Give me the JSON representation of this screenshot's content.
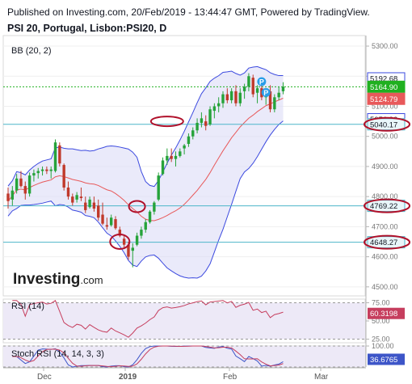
{
  "header": {
    "publisher": "Published on Investing.com, 20/Feb/2019 - 13:44:47 GMT, Powered by TradingView.",
    "symbol": "PSI 20, Portugal, Lisbon:PSI20, D"
  },
  "logo": {
    "brand": "Investing",
    "suffix": ".com"
  },
  "colors": {
    "up": "#26a33a",
    "down": "#c0392b",
    "band_fill": "#dcdcf7",
    "band_line": "#3b49df",
    "basis": "#e8595a",
    "price_line": "#20b020",
    "hline": "#4db6c9",
    "annotation": "#b0102a",
    "rsi_line": "#c63e5e",
    "stoch_k": "#3d55c8",
    "stoch_d": "#c63e5e"
  },
  "chart_data": [
    {
      "type": "candlestick",
      "title": "PSI 20, Portugal, Lisbon:PSI20, D",
      "indicator_label": "BB (20, 2)",
      "y_ticks": [
        5300,
        5200,
        5100,
        5000,
        4900,
        4800,
        4700,
        4600,
        4500
      ],
      "ylim": [
        4470,
        5335
      ],
      "x_ticks": [
        "Dec",
        "2019",
        "Feb",
        "Mar"
      ],
      "price_labels": [
        {
          "label": "5192.68",
          "value": 5192.68,
          "kind": "upper-band"
        },
        {
          "label": "5164.90",
          "value": 5164.9,
          "kind": "last-price"
        },
        {
          "label": "5124.79",
          "value": 5124.79,
          "kind": "basis"
        },
        {
          "label": "5056.90",
          "value": 5056.9,
          "kind": "lower-band"
        },
        {
          "label": "5040.17",
          "value": 5040.17,
          "kind": "horizontal-line"
        },
        {
          "label": "4769.22",
          "value": 4769.22,
          "kind": "horizontal-line"
        },
        {
          "label": "4648.27",
          "value": 4648.27,
          "kind": "horizontal-line"
        }
      ],
      "horizontal_lines": [
        5040.17,
        4769.22,
        4648.27
      ],
      "circled_levels": [
        5040.17,
        4769.22,
        4648.27
      ],
      "markers": [
        "P",
        "P"
      ],
      "candles": [
        {
          "o": 4810,
          "h": 4830,
          "l": 4760,
          "c": 4785
        },
        {
          "o": 4790,
          "h": 4835,
          "l": 4770,
          "c": 4820
        },
        {
          "o": 4820,
          "h": 4875,
          "l": 4810,
          "c": 4860
        },
        {
          "o": 4860,
          "h": 4885,
          "l": 4830,
          "c": 4835
        },
        {
          "o": 4835,
          "h": 4850,
          "l": 4790,
          "c": 4810
        },
        {
          "o": 4810,
          "h": 4880,
          "l": 4800,
          "c": 4870
        },
        {
          "o": 4870,
          "h": 4890,
          "l": 4850,
          "c": 4878
        },
        {
          "o": 4878,
          "h": 4895,
          "l": 4860,
          "c": 4885
        },
        {
          "o": 4885,
          "h": 4900,
          "l": 4870,
          "c": 4890
        },
        {
          "o": 4890,
          "h": 4900,
          "l": 4875,
          "c": 4885
        },
        {
          "o": 4885,
          "h": 4900,
          "l": 4860,
          "c": 4890
        },
        {
          "o": 4885,
          "h": 4990,
          "l": 4880,
          "c": 4980
        },
        {
          "o": 4970,
          "h": 4980,
          "l": 4900,
          "c": 4910
        },
        {
          "o": 4905,
          "h": 4910,
          "l": 4820,
          "c": 4830
        },
        {
          "o": 4830,
          "h": 4850,
          "l": 4790,
          "c": 4800
        },
        {
          "o": 4800,
          "h": 4810,
          "l": 4770,
          "c": 4780
        },
        {
          "o": 4790,
          "h": 4815,
          "l": 4780,
          "c": 4805
        },
        {
          "o": 4800,
          "h": 4830,
          "l": 4785,
          "c": 4795
        },
        {
          "o": 4780,
          "h": 4800,
          "l": 4745,
          "c": 4755
        },
        {
          "o": 4765,
          "h": 4800,
          "l": 4760,
          "c": 4790
        },
        {
          "o": 4780,
          "h": 4800,
          "l": 4750,
          "c": 4760
        },
        {
          "o": 4770,
          "h": 4790,
          "l": 4720,
          "c": 4730
        },
        {
          "o": 4740,
          "h": 4780,
          "l": 4705,
          "c": 4710
        },
        {
          "o": 4705,
          "h": 4730,
          "l": 4690,
          "c": 4700
        },
        {
          "o": 4705,
          "h": 4740,
          "l": 4700,
          "c": 4730
        },
        {
          "o": 4725,
          "h": 4735,
          "l": 4690,
          "c": 4695
        },
        {
          "o": 4690,
          "h": 4700,
          "l": 4665,
          "c": 4670
        },
        {
          "o": 4660,
          "h": 4670,
          "l": 4630,
          "c": 4640
        },
        {
          "o": 4640,
          "h": 4650,
          "l": 4590,
          "c": 4600
        },
        {
          "o": 4620,
          "h": 4645,
          "l": 4565,
          "c": 4630
        },
        {
          "o": 4640,
          "h": 4680,
          "l": 4635,
          "c": 4670
        },
        {
          "o": 4670,
          "h": 4700,
          "l": 4660,
          "c": 4690
        },
        {
          "o": 4690,
          "h": 4725,
          "l": 4680,
          "c": 4715
        },
        {
          "o": 4715,
          "h": 4755,
          "l": 4710,
          "c": 4750
        },
        {
          "o": 4750,
          "h": 4785,
          "l": 4740,
          "c": 4780
        },
        {
          "o": 4790,
          "h": 4880,
          "l": 4785,
          "c": 4870
        },
        {
          "o": 4875,
          "h": 4930,
          "l": 4870,
          "c": 4920
        },
        {
          "o": 4920,
          "h": 4960,
          "l": 4905,
          "c": 4935
        },
        {
          "o": 4935,
          "h": 4960,
          "l": 4915,
          "c": 4925
        },
        {
          "o": 4925,
          "h": 4950,
          "l": 4900,
          "c": 4935
        },
        {
          "o": 4935,
          "h": 4960,
          "l": 4930,
          "c": 4950
        },
        {
          "o": 4960,
          "h": 4975,
          "l": 4940,
          "c": 4970
        },
        {
          "o": 4975,
          "h": 5010,
          "l": 4965,
          "c": 5000
        },
        {
          "o": 5000,
          "h": 5030,
          "l": 4990,
          "c": 5020
        },
        {
          "o": 5020,
          "h": 5060,
          "l": 5010,
          "c": 5045
        },
        {
          "o": 5045,
          "h": 5080,
          "l": 5030,
          "c": 5060
        },
        {
          "o": 5050,
          "h": 5070,
          "l": 5020,
          "c": 5035
        },
        {
          "o": 5040,
          "h": 5100,
          "l": 5035,
          "c": 5090
        },
        {
          "o": 5085,
          "h": 5110,
          "l": 5060,
          "c": 5100
        },
        {
          "o": 5100,
          "h": 5130,
          "l": 5080,
          "c": 5110
        },
        {
          "o": 5110,
          "h": 5150,
          "l": 5095,
          "c": 5140
        },
        {
          "o": 5140,
          "h": 5160,
          "l": 5110,
          "c": 5120
        },
        {
          "o": 5120,
          "h": 5160,
          "l": 5110,
          "c": 5150
        },
        {
          "o": 5150,
          "h": 5170,
          "l": 5100,
          "c": 5110
        },
        {
          "o": 5110,
          "h": 5160,
          "l": 5100,
          "c": 5145
        },
        {
          "o": 5150,
          "h": 5175,
          "l": 5125,
          "c": 5165
        },
        {
          "o": 5165,
          "h": 5210,
          "l": 5150,
          "c": 5200
        },
        {
          "o": 5195,
          "h": 5205,
          "l": 5130,
          "c": 5140
        },
        {
          "o": 5145,
          "h": 5170,
          "l": 5110,
          "c": 5160
        },
        {
          "o": 5160,
          "h": 5175,
          "l": 5120,
          "c": 5130
        },
        {
          "o": 5130,
          "h": 5160,
          "l": 5105,
          "c": 5150
        },
        {
          "o": 5150,
          "h": 5170,
          "l": 5080,
          "c": 5090
        },
        {
          "o": 5090,
          "h": 5140,
          "l": 5080,
          "c": 5130
        },
        {
          "o": 5130,
          "h": 5165,
          "l": 5120,
          "c": 5145
        },
        {
          "o": 5150,
          "h": 5180,
          "l": 5140,
          "c": 5165
        }
      ]
    },
    {
      "type": "line",
      "title": "RSI (14)",
      "y_ticks": [
        75,
        50,
        25
      ],
      "ylim": [
        20,
        80
      ],
      "last_label": "60.3198",
      "last_value": 60.3198
    },
    {
      "type": "line",
      "title": "Stoch RSI (14, 14, 3, 3)",
      "y_ticks": [
        100,
        0
      ],
      "ylim": [
        0,
        100
      ],
      "last_label": "36.6765",
      "last_value": 36.6765
    }
  ]
}
